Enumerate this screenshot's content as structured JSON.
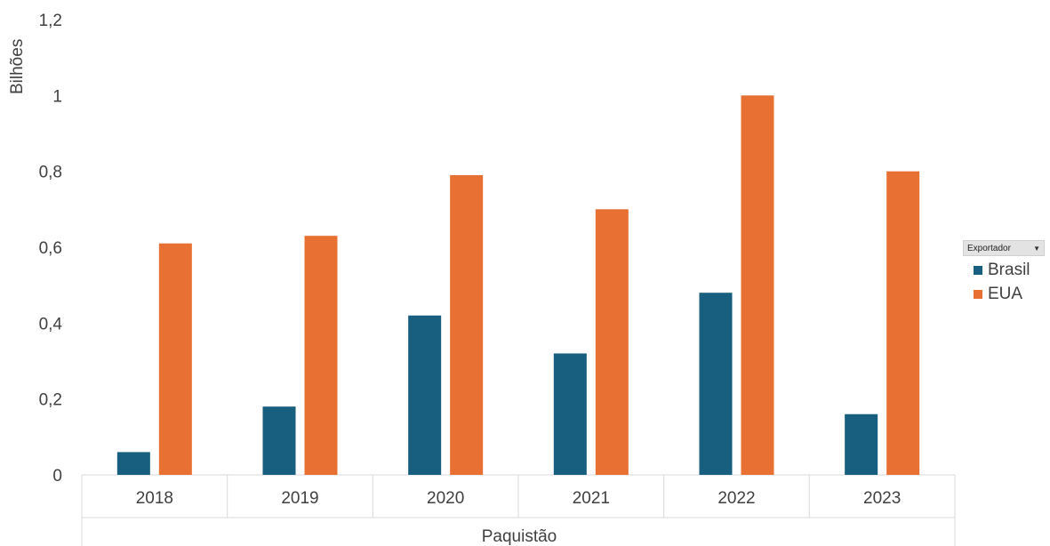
{
  "chart_data": {
    "type": "bar",
    "title": "",
    "xlabel": "Paquistão",
    "ylabel": "Bilhões",
    "categories": [
      "2018",
      "2019",
      "2020",
      "2021",
      "2022",
      "2023"
    ],
    "ylim": [
      0,
      1.2
    ],
    "yticks": [
      0,
      0.2,
      0.4,
      0.6,
      0.8,
      1,
      1.2
    ],
    "ytick_labels": [
      "0",
      "0,2",
      "0,4",
      "0,6",
      "0,8",
      "1",
      "1,2"
    ],
    "grid": false,
    "legend_position": "right",
    "series": [
      {
        "name": "Brasil",
        "color": "#175e7f",
        "values": [
          0.06,
          0.18,
          0.42,
          0.32,
          0.48,
          0.16
        ]
      },
      {
        "name": "EUA",
        "color": "#e87033",
        "values": [
          0.61,
          0.63,
          0.79,
          0.7,
          1.0,
          0.8
        ]
      }
    ]
  },
  "legend": {
    "filter_label": "Exportador",
    "filter_icon": "dropdown-arrow-icon"
  }
}
